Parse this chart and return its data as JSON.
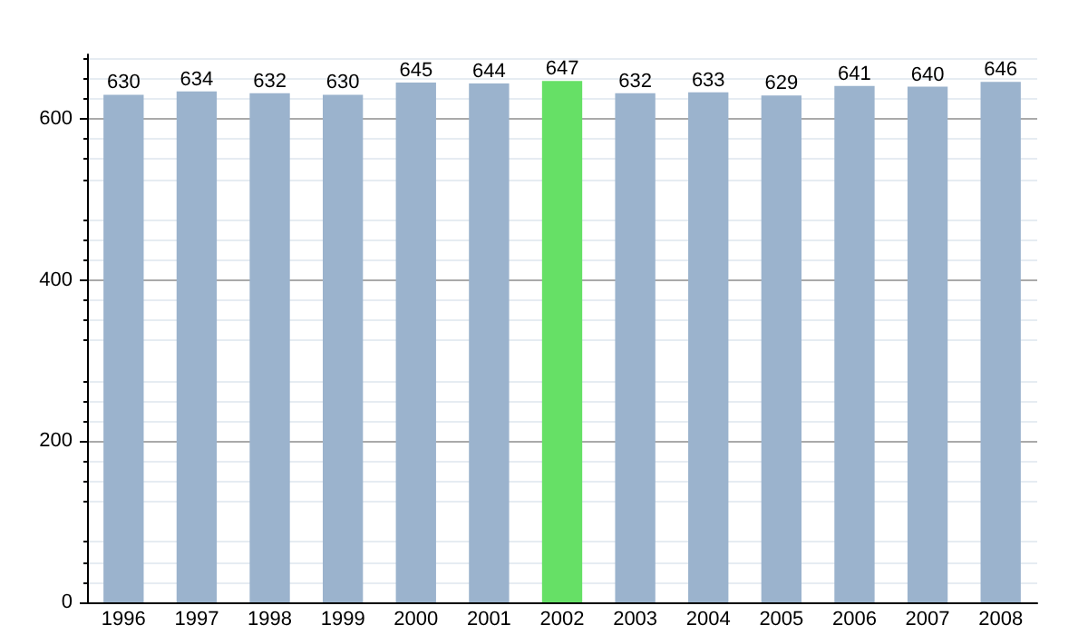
{
  "chart_data": {
    "type": "bar",
    "categories": [
      "1996",
      "1997",
      "1998",
      "1999",
      "2000",
      "2001",
      "2002",
      "2003",
      "2004",
      "2005",
      "2006",
      "2007",
      "2008"
    ],
    "values": [
      630,
      634,
      632,
      630,
      645,
      644,
      647,
      632,
      633,
      629,
      641,
      640,
      646
    ],
    "colors": [
      "#9bb3cd",
      "#9bb3cd",
      "#9bb3cd",
      "#9bb3cd",
      "#9bb3cd",
      "#9bb3cd",
      "#66e066",
      "#9bb3cd",
      "#9bb3cd",
      "#9bb3cd",
      "#9bb3cd",
      "#9bb3cd",
      "#9bb3cd"
    ],
    "ylim": [
      0,
      680
    ],
    "yticks": [
      0,
      200,
      400,
      600
    ],
    "grid": "y",
    "data_labels": true
  }
}
